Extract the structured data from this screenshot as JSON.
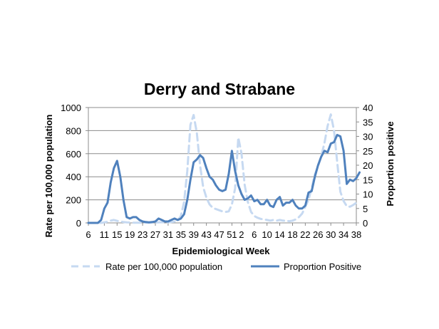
{
  "chart_data": {
    "type": "line",
    "title": "Derry and Strabane",
    "xlabel": "Epidemiological Week",
    "ylabel_left": "Rate per 100,000 population",
    "ylabel_right": "Proportion positive",
    "ylim_left": [
      0,
      1000
    ],
    "ylim_right": [
      0,
      40
    ],
    "yticks_left": [
      "0",
      "200",
      "400",
      "600",
      "800",
      "1000"
    ],
    "yticks_right": [
      "0",
      "5",
      "10",
      "15",
      "20",
      "25",
      "30",
      "35",
      "40"
    ],
    "x_tick_labels": [
      "6",
      "11",
      "15",
      "19",
      "23",
      "27",
      "31",
      "35",
      "39",
      "43",
      "47",
      "51",
      "2",
      "6",
      "10",
      "14",
      "18",
      "22",
      "26",
      "30",
      "34",
      "38"
    ],
    "x_tick_positions": [
      0,
      5,
      9,
      13,
      17,
      21,
      25,
      29,
      33,
      37,
      41,
      45,
      48,
      52,
      56,
      60,
      64,
      68,
      72,
      76,
      80,
      84
    ],
    "series": [
      {
        "name": "Rate per 100,000 population",
        "axis": "left",
        "style": "dashed",
        "color": "#c6d9f1",
        "values": [
          0,
          0,
          0,
          0,
          0,
          5,
          10,
          20,
          25,
          18,
          12,
          8,
          5,
          3,
          2,
          2,
          1,
          1,
          1,
          1,
          2,
          3,
          5,
          6,
          5,
          5,
          8,
          12,
          20,
          60,
          180,
          450,
          850,
          935,
          780,
          500,
          310,
          220,
          160,
          130,
          120,
          110,
          100,
          95,
          100,
          160,
          300,
          740,
          600,
          330,
          180,
          95,
          60,
          45,
          35,
          30,
          25,
          20,
          25,
          20,
          25,
          20,
          18,
          15,
          20,
          30,
          50,
          80,
          140,
          200,
          300,
          420,
          490,
          580,
          690,
          840,
          940,
          800,
          530,
          270,
          190,
          145,
          140,
          155,
          175
        ]
      },
      {
        "name": "Proportion Positive",
        "axis": "right",
        "style": "solid",
        "color": "#4f81bd",
        "values": [
          0,
          0,
          0,
          0,
          1,
          5,
          7,
          14,
          19,
          21.5,
          16,
          8,
          2,
          1.5,
          2,
          2,
          1,
          0.5,
          0.3,
          0.2,
          0.3,
          0.5,
          1.5,
          1,
          0.5,
          0.5,
          1,
          1.5,
          1,
          1.5,
          3,
          8,
          15,
          21,
          22,
          23.5,
          22.5,
          19,
          16,
          15,
          13,
          11.5,
          11,
          11.5,
          17,
          25,
          18,
          13,
          10,
          8,
          8.5,
          9.5,
          7.5,
          8,
          6.5,
          6.5,
          8,
          6,
          5.5,
          8,
          9,
          6,
          7,
          7,
          8,
          6,
          5,
          5,
          6,
          10.5,
          11,
          16,
          20,
          23,
          25,
          24.5,
          27.5,
          28,
          30.5,
          30,
          25,
          13.5,
          15,
          14.5,
          15.5,
          17.5
        ]
      }
    ],
    "legend": {
      "placement": "bottom",
      "items": [
        "Rate per 100,000 population",
        "Proportion Positive"
      ]
    }
  }
}
